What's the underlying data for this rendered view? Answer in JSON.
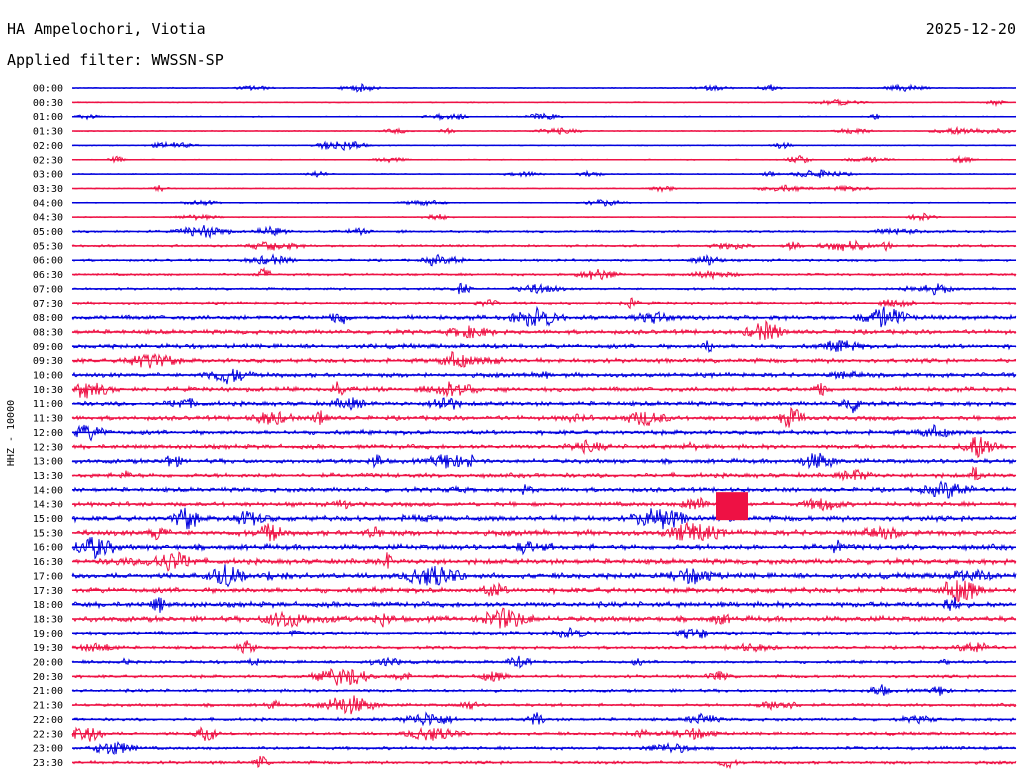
{
  "header": {
    "station": "HA Ampelochori, Viotia",
    "date": "2025-12-20",
    "filter_line": "Applied filter: WWSSN-SP"
  },
  "channel_label": "HHZ - 10000",
  "colors": {
    "trace_a": "#0000dd",
    "trace_b": "#ee1144",
    "text": "#000000",
    "background": "#ffffff"
  },
  "rows": [
    {
      "time": "00:00"
    },
    {
      "time": "00:30"
    },
    {
      "time": "01:00"
    },
    {
      "time": "01:30"
    },
    {
      "time": "02:00"
    },
    {
      "time": "02:30"
    },
    {
      "time": "03:00"
    },
    {
      "time": "03:30"
    },
    {
      "time": "04:00"
    },
    {
      "time": "04:30"
    },
    {
      "time": "05:00"
    },
    {
      "time": "05:30"
    },
    {
      "time": "06:00"
    },
    {
      "time": "06:30"
    },
    {
      "time": "07:00"
    },
    {
      "time": "07:30"
    },
    {
      "time": "08:00"
    },
    {
      "time": "08:30"
    },
    {
      "time": "09:00"
    },
    {
      "time": "09:30"
    },
    {
      "time": "10:00"
    },
    {
      "time": "10:30"
    },
    {
      "time": "11:00"
    },
    {
      "time": "11:30"
    },
    {
      "time": "12:00"
    },
    {
      "time": "12:30"
    },
    {
      "time": "13:00"
    },
    {
      "time": "13:30"
    },
    {
      "time": "14:00"
    },
    {
      "time": "14:30"
    },
    {
      "time": "15:00"
    },
    {
      "time": "15:30"
    },
    {
      "time": "16:00"
    },
    {
      "time": "16:30"
    },
    {
      "time": "17:00"
    },
    {
      "time": "17:30"
    },
    {
      "time": "18:00"
    },
    {
      "time": "18:30"
    },
    {
      "time": "19:00"
    },
    {
      "time": "19:30"
    },
    {
      "time": "20:00"
    },
    {
      "time": "20:30"
    },
    {
      "time": "21:00"
    },
    {
      "time": "21:30"
    },
    {
      "time": "22:00"
    },
    {
      "time": "22:30"
    },
    {
      "time": "23:00"
    },
    {
      "time": "23:30"
    }
  ]
}
